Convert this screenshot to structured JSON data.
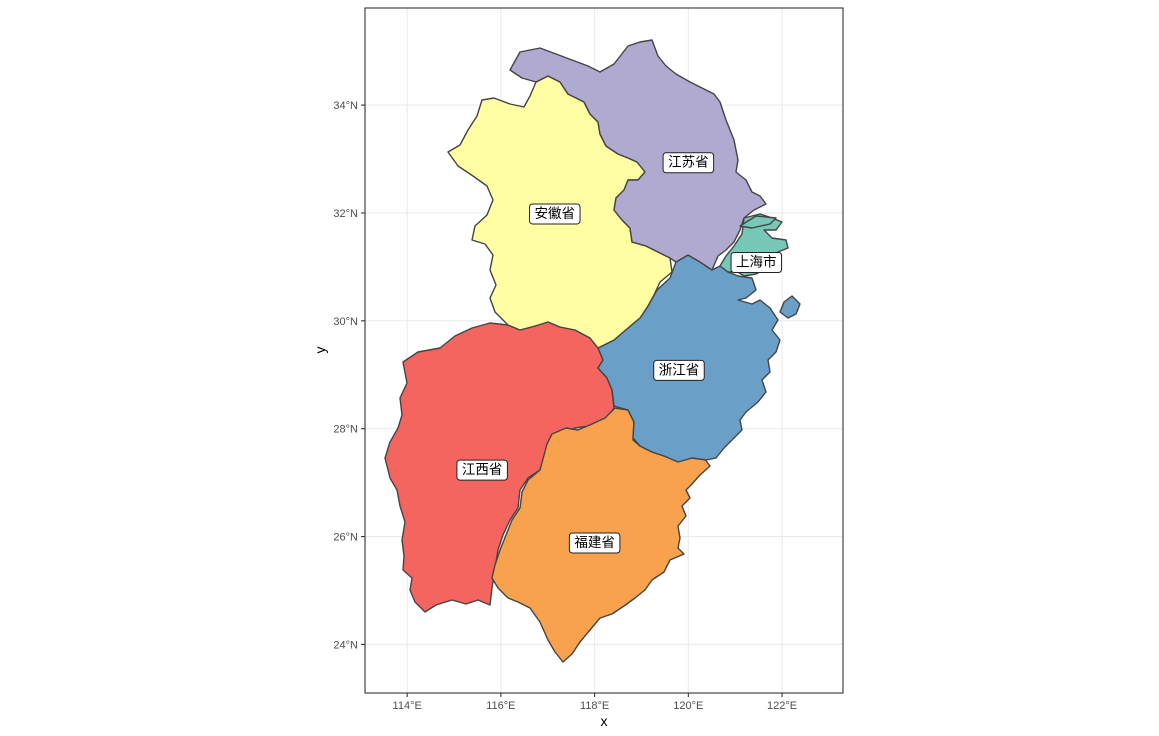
{
  "map": {
    "type": "choropleth-map",
    "xlabel": "x",
    "ylabel": "y",
    "x_ticks": [
      "114°E",
      "116°E",
      "118°E",
      "120°E",
      "122°E"
    ],
    "y_ticks": [
      "24°N",
      "26°N",
      "28°N",
      "30°N",
      "32°N",
      "34°N"
    ],
    "x_tick_values": [
      114,
      116,
      118,
      120,
      122
    ],
    "y_tick_values": [
      24,
      26,
      28,
      30,
      32,
      34
    ],
    "xlim": [
      113.1,
      123.3
    ],
    "ylim": [
      23.1,
      35.8
    ],
    "grid": true,
    "regions": [
      {
        "name": "江苏省",
        "fill": "#b0aad1",
        "label_lon": 120.0,
        "label_lat": 32.95
      },
      {
        "name": "安徽省",
        "fill": "#fffea3",
        "label_lon": 117.15,
        "label_lat": 32.0
      },
      {
        "name": "上海市",
        "fill": "#77c8b6",
        "label_lon": 121.45,
        "label_lat": 31.1
      },
      {
        "name": "浙江省",
        "fill": "#6aa0c8",
        "label_lon": 119.8,
        "label_lat": 29.1
      },
      {
        "name": "江西省",
        "fill": "#f4655f",
        "label_lon": 115.6,
        "label_lat": 27.25
      },
      {
        "name": "福建省",
        "fill": "#f8a24e",
        "label_lon": 118.0,
        "label_lat": 25.9
      }
    ]
  }
}
